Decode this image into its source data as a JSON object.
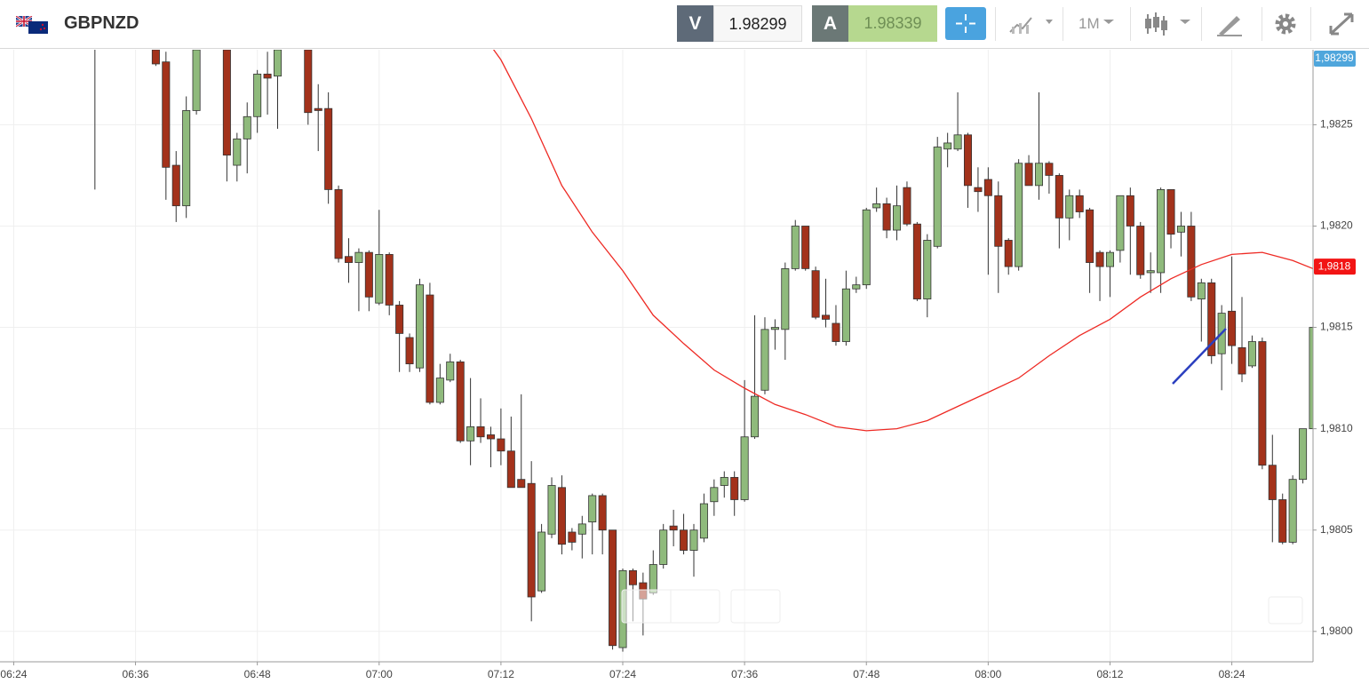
{
  "toolbar": {
    "symbol": "GBPNZD",
    "sell_label": "V",
    "sell_price": 1.98299,
    "buy_label": "A",
    "buy_price": 1.98339,
    "timeframe": "1M"
  },
  "chart_data": {
    "type": "candlestick",
    "x": [
      "06:32",
      "06:38",
      "06:39",
      "06:40",
      "06:41",
      "06:42",
      "06:45",
      "06:46",
      "06:47",
      "06:48",
      "06:49",
      "06:50",
      "06:53",
      "06:54",
      "06:55",
      "06:56",
      "06:57",
      "06:58",
      "06:59",
      "07:00",
      "07:01",
      "07:02",
      "07:03",
      "07:04",
      "07:05",
      "07:06",
      "07:07",
      "07:08",
      "07:09",
      "07:10",
      "07:11",
      "07:12",
      "07:13",
      "07:14",
      "07:15",
      "07:16",
      "07:17",
      "07:18",
      "07:19",
      "07:20",
      "07:21",
      "07:22",
      "07:23",
      "07:24",
      "07:25",
      "07:26",
      "07:27",
      "07:28",
      "07:29",
      "07:30",
      "07:31",
      "07:32",
      "07:33",
      "07:34",
      "07:35",
      "07:36",
      "07:37",
      "07:38",
      "07:39",
      "07:40",
      "07:41",
      "07:42",
      "07:43",
      "07:44",
      "07:45",
      "07:46",
      "07:47",
      "07:48",
      "07:49",
      "07:50",
      "07:51",
      "07:52",
      "07:53",
      "07:54",
      "07:55",
      "07:56",
      "07:57",
      "07:58",
      "07:59",
      "08:00",
      "08:01",
      "08:02",
      "08:03",
      "08:04",
      "08:05",
      "08:06",
      "08:07",
      "08:08",
      "08:09",
      "08:10",
      "08:11",
      "08:12",
      "08:13",
      "08:14",
      "08:15",
      "08:16",
      "08:17",
      "08:18",
      "08:19",
      "08:20",
      "08:21",
      "08:22",
      "08:23",
      "08:24",
      "08:25",
      "08:26",
      "08:27",
      "08:28",
      "08:29",
      "08:30",
      "08:31",
      "08:32"
    ],
    "open": [
      1.9829,
      1.98287,
      1.98281,
      1.9823,
      1.9821,
      1.98257,
      1.98287,
      1.9823,
      1.98243,
      1.98254,
      1.98275,
      1.98274,
      1.98287,
      1.98258,
      1.98258,
      1.98218,
      1.98185,
      1.98182,
      1.98187,
      1.98162,
      1.98186,
      1.98161,
      1.98145,
      1.9813,
      1.98166,
      1.98113,
      1.98124,
      1.98133,
      1.98094,
      1.98101,
      1.98097,
      1.98095,
      1.98089,
      1.98075,
      1.98073,
      1.9802,
      1.98048,
      1.98071,
      1.98049,
      1.98048,
      1.98054,
      1.98067,
      1.9805,
      1.97992,
      1.9803,
      1.98024,
      1.98019,
      1.98033,
      1.98052,
      1.9805,
      1.9804,
      1.98046,
      1.98064,
      1.98072,
      1.98076,
      1.98065,
      1.98096,
      1.98119,
      1.98149,
      1.98149,
      1.98179,
      1.982,
      1.98178,
      1.98156,
      1.98152,
      1.98143,
      1.98169,
      1.98171,
      1.98209,
      1.98211,
      1.98198,
      1.98219,
      1.98201,
      1.98164,
      1.9819,
      1.98238,
      1.98238,
      1.98245,
      1.98219,
      1.98223,
      1.98215,
      1.98193,
      1.9818,
      1.98231,
      1.9822,
      1.98231,
      1.98225,
      1.98204,
      1.98215,
      1.98208,
      1.98187,
      1.9818,
      1.98188,
      1.98215,
      1.982,
      1.98177,
      1.98177,
      1.98218,
      1.98197,
      1.982,
      1.98164,
      1.98172,
      1.98137,
      1.98158,
      1.9814,
      1.98131,
      1.98143,
      1.98082,
      1.98065,
      1.98044,
      1.98075,
      1.981
    ],
    "high": [
      1.98294,
      1.98287,
      1.98286,
      1.98237,
      1.98264,
      1.98287,
      1.9829,
      1.98246,
      1.98261,
      1.98277,
      1.98286,
      1.98287,
      1.98287,
      1.9827,
      1.98266,
      1.9822,
      1.98194,
      1.98189,
      1.98188,
      1.98208,
      1.98187,
      1.98163,
      1.98147,
      1.98174,
      1.98172,
      1.98132,
      1.98137,
      1.98134,
      1.98125,
      1.98115,
      1.98101,
      1.9811,
      1.98106,
      1.98117,
      1.98084,
      1.98053,
      1.98076,
      1.98077,
      1.98051,
      1.98057,
      1.98068,
      1.98068,
      1.9805,
      1.98031,
      1.98031,
      1.98029,
      1.9804,
      1.98053,
      1.9806,
      1.98058,
      1.98053,
      1.98068,
      1.98075,
      1.98079,
      1.98079,
      1.98124,
      1.98156,
      1.98155,
      1.98154,
      1.98182,
      1.98203,
      1.982,
      1.9818,
      1.98174,
      1.98161,
      1.98178,
      1.98175,
      1.98209,
      1.98219,
      1.98214,
      1.9822,
      1.98222,
      1.98202,
      1.98196,
      1.98244,
      1.98246,
      1.98266,
      1.98246,
      1.98229,
      1.98229,
      1.98222,
      1.98194,
      1.98233,
      1.98235,
      1.98266,
      1.98232,
      1.98226,
      1.98218,
      1.98218,
      1.98209,
      1.98188,
      1.98188,
      1.98215,
      1.98219,
      1.98202,
      1.98187,
      1.98219,
      1.98218,
      1.98207,
      1.98207,
      1.98174,
      1.98174,
      1.98161,
      1.98185,
      1.98165,
      1.98146,
      1.98145,
      1.98097,
      1.98068,
      1.98077,
      1.981,
      1.9815
    ],
    "low": [
      1.98218,
      1.98279,
      1.98213,
      1.98202,
      1.98204,
      1.98255,
      1.98222,
      1.98222,
      1.98226,
      1.98246,
      1.98255,
      1.98248,
      1.9825,
      1.98237,
      1.98211,
      1.98182,
      1.98172,
      1.98158,
      1.98158,
      1.98161,
      1.98156,
      1.98128,
      1.98128,
      1.98128,
      1.98112,
      1.98112,
      1.98123,
      1.98093,
      1.98082,
      1.98093,
      1.98081,
      1.98082,
      1.98071,
      1.98071,
      1.98005,
      1.98019,
      1.98046,
      1.98038,
      1.9804,
      1.98036,
      1.98038,
      1.98038,
      1.97991,
      1.9799,
      1.98005,
      1.97998,
      1.98018,
      1.98031,
      1.98042,
      1.98038,
      1.98027,
      1.98044,
      1.98057,
      1.98066,
      1.98057,
      1.98064,
      1.98095,
      1.98117,
      1.98139,
      1.98134,
      1.98178,
      1.98178,
      1.98154,
      1.9815,
      1.98141,
      1.98141,
      1.98167,
      1.98169,
      1.98207,
      1.98194,
      1.98193,
      1.982,
      1.98163,
      1.98155,
      1.98189,
      1.98229,
      1.98237,
      1.98209,
      1.98207,
      1.98176,
      1.98167,
      1.98176,
      1.98178,
      1.9822,
      1.98213,
      1.98216,
      1.98189,
      1.98193,
      1.98204,
      1.98167,
      1.98163,
      1.98165,
      1.98182,
      1.98176,
      1.98174,
      1.98167,
      1.98167,
      1.98189,
      1.98185,
      1.98163,
      1.98143,
      1.98132,
      1.98119,
      1.98132,
      1.98123,
      1.9813,
      1.9808,
      1.98044,
      1.98043,
      1.98043,
      1.98073,
      1.9809
    ],
    "close": [
      1.98289,
      1.9828,
      1.98229,
      1.9821,
      1.98257,
      1.98287,
      1.98235,
      1.98243,
      1.98254,
      1.98275,
      1.98273,
      1.98287,
      1.98256,
      1.98257,
      1.98218,
      1.98184,
      1.98182,
      1.98187,
      1.98165,
      1.98186,
      1.98161,
      1.98147,
      1.98132,
      1.98171,
      1.98113,
      1.98125,
      1.98133,
      1.98094,
      1.98101,
      1.98096,
      1.98095,
      1.98089,
      1.98071,
      1.98071,
      1.98017,
      1.98049,
      1.98072,
      1.98043,
      1.98044,
      1.98053,
      1.98067,
      1.9805,
      1.97993,
      1.9803,
      1.98023,
      1.98016,
      1.98033,
      1.9805,
      1.9805,
      1.9804,
      1.9805,
      1.98063,
      1.98071,
      1.98076,
      1.98065,
      1.98096,
      1.98116,
      1.98149,
      1.9815,
      1.98179,
      1.982,
      1.98179,
      1.98155,
      1.98154,
      1.98143,
      1.98169,
      1.98171,
      1.98208,
      1.98211,
      1.98198,
      1.9821,
      1.98201,
      1.98164,
      1.98193,
      1.98239,
      1.98241,
      1.98245,
      1.9822,
      1.98217,
      1.98215,
      1.9819,
      1.9818,
      1.98231,
      1.9822,
      1.98231,
      1.98225,
      1.98204,
      1.98215,
      1.98207,
      1.98182,
      1.9818,
      1.98187,
      1.98215,
      1.982,
      1.98176,
      1.98178,
      1.98218,
      1.98196,
      1.982,
      1.98165,
      1.98172,
      1.98136,
      1.98157,
      1.98141,
      1.98127,
      1.98143,
      1.98082,
      1.98065,
      1.98044,
      1.98075,
      1.981,
      1.9815
    ],
    "up_color": "#8fba7c",
    "down_color": "#a3321b",
    "ma": {
      "color": "#ee2a24",
      "x": [
        "07:10",
        "07:12",
        "07:15",
        "07:18",
        "07:21",
        "07:24",
        "07:27",
        "07:30",
        "07:33",
        "07:36",
        "07:39",
        "07:42",
        "07:45",
        "07:48",
        "07:51",
        "07:54",
        "07:57",
        "08:00",
        "08:03",
        "08:06",
        "08:09",
        "08:12",
        "08:15",
        "08:18",
        "08:21",
        "08:24",
        "08:27",
        "08:30",
        "08:32"
      ],
      "values": [
        1.98296,
        1.98282,
        1.98253,
        1.9822,
        1.98197,
        1.98178,
        1.98156,
        1.98142,
        1.98129,
        1.9812,
        1.98112,
        1.98107,
        1.98101,
        1.98099,
        1.981,
        1.98104,
        1.98111,
        1.98118,
        1.98125,
        1.98136,
        1.98146,
        1.98154,
        1.98165,
        1.98174,
        1.98181,
        1.98186,
        1.98187,
        1.98183,
        1.98179
      ]
    },
    "ylim": [
      1.97985,
      1.98287
    ],
    "yticks": [
      {
        "value": 1.98,
        "label": "1,9800"
      },
      {
        "value": 1.9805,
        "label": "1,9805"
      },
      {
        "value": 1.981,
        "label": "1,9810"
      },
      {
        "value": 1.9815,
        "label": "1,9815"
      },
      {
        "value": 1.982,
        "label": "1,9820"
      },
      {
        "value": 1.9825,
        "label": "1,9825"
      }
    ],
    "xlim": [
      "06:23",
      "08:32"
    ],
    "xticks": [
      "06:24",
      "06:36",
      "06:48",
      "07:00",
      "07:12",
      "07:24",
      "07:36",
      "07:48",
      "08:00",
      "08:12",
      "08:24"
    ],
    "grid": true,
    "price_tags": [
      {
        "value": 1.98299,
        "label": "1,98299",
        "color": "#4fa6dc"
      },
      {
        "value": 1.9818,
        "label": "1,9818",
        "color": "#f21414"
      }
    ]
  }
}
